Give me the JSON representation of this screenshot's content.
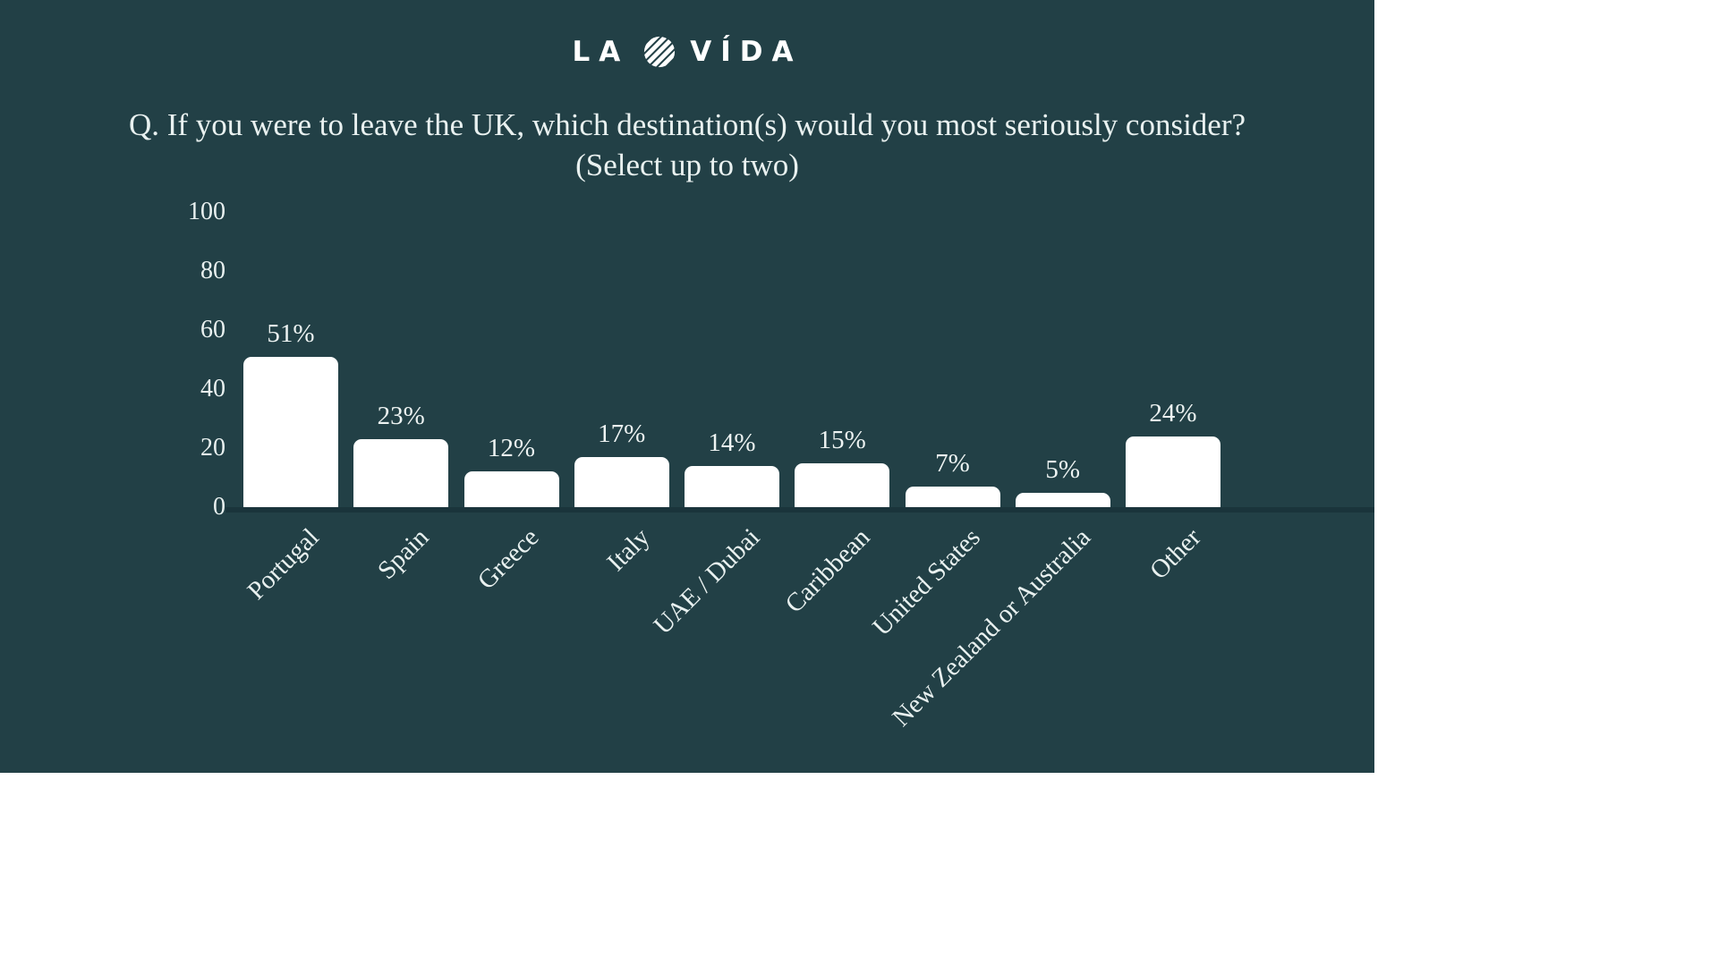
{
  "brand": {
    "prefix": "LA",
    "suffix": "VÍDA",
    "icon": "striped-globe-icon"
  },
  "title": {
    "line1": "Q. If you were to leave the UK, which destination(s) would you most seriously consider?",
    "line2": "(Select up to two)"
  },
  "chart_data": {
    "type": "bar",
    "title": "Q. If you were to leave the UK, which destination(s) would you most seriously consider? (Select up to two)",
    "categories": [
      "Portugal",
      "Spain",
      "Greece",
      "Italy",
      "UAE / Dubai",
      "Caribbean",
      "United States",
      "New Zealand or Australia",
      "Other"
    ],
    "values": [
      51,
      23,
      12,
      17,
      14,
      15,
      7,
      5,
      24
    ],
    "value_labels": [
      "51%",
      "23%",
      "12%",
      "17%",
      "14%",
      "15%",
      "7%",
      "5%",
      "24%"
    ],
    "yticks": [
      0,
      20,
      40,
      60,
      80,
      100
    ],
    "ylim": [
      0,
      100
    ],
    "xlabel": "",
    "ylabel": "",
    "grid": false,
    "legend": "none",
    "bar_color": "#ffffff",
    "background_color": "#224046",
    "text_color": "#e9f1f0"
  }
}
